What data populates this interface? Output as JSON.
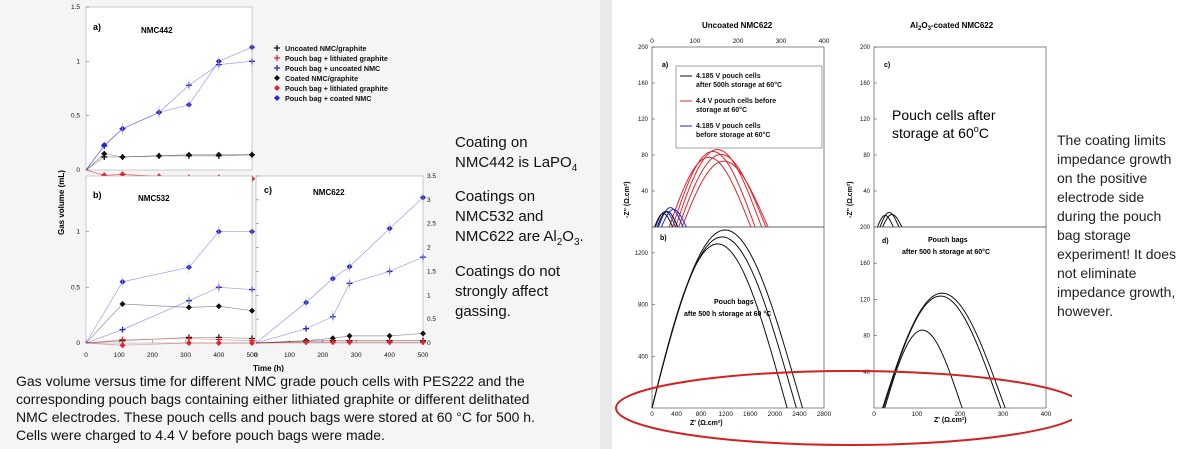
{
  "left": {
    "panel_a_letter": "a)",
    "panel_a_title": "NMC442",
    "panel_b_letter": "b)",
    "panel_b_title": "NMC532",
    "panel_c_letter": "c)",
    "panel_c_title": "NMC622",
    "y_axis_label": "Gas volume (mL)",
    "x_axis_label": "Time (h)",
    "legend": [
      {
        "label": "Uncoated NMC/graphite",
        "color": "#111111",
        "marker": "+"
      },
      {
        "label": "Pouch bag + lithiated graphite",
        "color": "#e0242b",
        "marker": "+"
      },
      {
        "label": "Pouch bag + uncoated NMC",
        "color": "#2323d8",
        "marker": "+"
      },
      {
        "label": "Coated NMC/graphite",
        "color": "#111111",
        "marker": "diamond"
      },
      {
        "label": "Pouch bag + lithiated graphite",
        "color": "#e0242b",
        "marker": "diamond"
      },
      {
        "label": "Pouch bag + coated NMC",
        "color": "#2323d8",
        "marker": "diamond"
      }
    ]
  },
  "notes": {
    "n1_line1": "Coating on",
    "n1_line2": "NMC442 is LaPO",
    "n1_sub": "4",
    "n2_line1": "Coatings on",
    "n2_line2": "NMC532 and",
    "n2_line3a": "NMC622 are Al",
    "n2_sub1": "2",
    "n2_mid": "O",
    "n2_sub2": "3",
    "n2_end": ".",
    "n3_line1": "Coatings do not",
    "n3_line2": "strongly affect",
    "n3_line3": "gassing."
  },
  "caption": {
    "line1": "Gas volume versus time for different NMC grade pouch cells with PES222 and the",
    "line2": "corresponding pouch bags containing either lithiated graphite or different delithated",
    "line3": "NMC electrodes. These pouch cells and pouch bags were stored at 60 °C for 500 h.",
    "line4": "Cells were charged to 4.4 V before pouch bags were made."
  },
  "right": {
    "title_uncoated": "Uncoated NMC622",
    "title_coated_a": "Al",
    "title_coated_sub1": "2",
    "title_coated_b": "O",
    "title_coated_sub2": "3",
    "title_coated_c": "-coated NMC622",
    "panel_a_letter": "a)",
    "panel_b_letter": "b)",
    "panel_c_letter": "c)",
    "panel_d_letter": "d)",
    "legend_a": [
      {
        "l1": "4.185 V pouch cells",
        "l2": "after 500h storage at 60°C",
        "color": "#111111"
      },
      {
        "l1": "4.4  V pouch cells before",
        "l2": "storage at 60°C",
        "color": "#e0242b"
      },
      {
        "l1": "4.185 V pouch cells",
        "l2": "before storage at 60°C",
        "color": "#2323d8"
      }
    ],
    "pouch_cells_after_l1": "Pouch cells after",
    "pouch_cells_after_l2a": "storage at 60",
    "pouch_cells_after_l2sup": "o",
    "pouch_cells_after_l2b": "C",
    "b_label_l1": "Pouch bags",
    "b_label_l2": "afte 500 h storage at 60 °C",
    "d_label_l1": "Pouch bags",
    "d_label_l2": "after 500 h storage at 60°C",
    "yaxis_label": "-Z'' (Ω.cm²)",
    "xaxis_label": "Z' (Ω.cm²)"
  },
  "right_text": {
    "l1": "The coating limits",
    "l2": "impedance growth",
    "l3": "on the positive",
    "l4": "electrode side",
    "l5": "during the pouch",
    "l6": "bag storage",
    "l7": "experiment!  It does",
    "l8": "not eliminate",
    "l9": "impedance growth,",
    "l10": "however."
  },
  "chart_data": [
    {
      "type": "line",
      "panel": "a",
      "title": "NMC442",
      "xlabel": "Time (h)",
      "ylabel": "Gas volume (mL)",
      "xlim": [
        0,
        500
      ],
      "ylim": [
        0,
        1.5
      ],
      "yticks": [
        "0",
        "0.5",
        "1",
        "1.5"
      ],
      "series": [
        {
          "name": "Uncoated NMC/graphite",
          "color": "#111111",
          "x": [
            0,
            55,
            110,
            220,
            310,
            400,
            500
          ],
          "y": [
            0,
            0.12,
            0.12,
            0.13,
            0.13,
            0.13,
            0.14
          ]
        },
        {
          "name": "Pouch bag + lithiated graphite",
          "color": "#e0242b",
          "x": [
            0,
            55,
            110,
            220,
            310,
            400,
            500
          ],
          "y": [
            0,
            -0.05,
            -0.04,
            -0.06,
            -0.07,
            -0.07,
            -0.08
          ]
        },
        {
          "name": "Pouch bag + uncoated NMC",
          "color": "#2323d8",
          "x": [
            0,
            55,
            110,
            220,
            310,
            400,
            500
          ],
          "y": [
            0,
            0.22,
            0.38,
            0.53,
            0.78,
            0.97,
            1.0
          ]
        },
        {
          "name": "Coated NMC/graphite",
          "color": "#111111",
          "x": [
            0,
            55,
            110,
            220,
            310,
            400,
            500
          ],
          "y": [
            0,
            0.15,
            0.12,
            0.13,
            0.14,
            0.14,
            0.14
          ]
        },
        {
          "name": "Pouch bag + lithiated graphite",
          "color": "#e0242b",
          "x": [
            0,
            55,
            110,
            220,
            310,
            400,
            500
          ],
          "y": [
            0,
            -0.05,
            -0.04,
            -0.06,
            -0.07,
            -0.07,
            -0.08
          ]
        },
        {
          "name": "Pouch bag + coated NMC",
          "color": "#2323d8",
          "x": [
            0,
            55,
            110,
            220,
            310,
            400,
            500
          ],
          "y": [
            0,
            0.23,
            0.38,
            0.53,
            0.6,
            1.0,
            1.13
          ]
        }
      ]
    },
    {
      "type": "line",
      "panel": "b",
      "title": "NMC532",
      "xlabel": "Time (h)",
      "xlim": [
        0,
        500
      ],
      "ylim": [
        0,
        1.5
      ],
      "xticks": [
        "0",
        "100",
        "200",
        "300",
        "400",
        "500"
      ],
      "yticks": [
        "0",
        "0.5",
        "1"
      ],
      "series": [
        {
          "name": "Uncoated NMC/graphite",
          "color": "#111111",
          "x": [
            0,
            110,
            310,
            400,
            500
          ],
          "y": [
            0,
            0.02,
            0.05,
            0.05,
            0.04
          ]
        },
        {
          "name": "Pouch bag + lithiated graphite",
          "color": "#e0242b",
          "x": [
            0,
            110,
            310,
            400,
            500
          ],
          "y": [
            0,
            0.03,
            0.04,
            0.03,
            0.02
          ]
        },
        {
          "name": "Pouch bag + uncoated NMC",
          "color": "#2323d8",
          "x": [
            0,
            110,
            310,
            400,
            500
          ],
          "y": [
            0,
            0.12,
            0.38,
            0.5,
            0.48
          ]
        },
        {
          "name": "Coated NMC/graphite",
          "color": "#111111",
          "x": [
            0,
            110,
            310,
            400,
            500
          ],
          "y": [
            0,
            0.35,
            0.32,
            0.33,
            0.29
          ]
        },
        {
          "name": "Pouch bag + lithiated graphite",
          "color": "#e0242b",
          "x": [
            0,
            110,
            310,
            400,
            500
          ],
          "y": [
            0,
            -0.02,
            0.0,
            0.0,
            0.0
          ]
        },
        {
          "name": "Pouch bag + coated NMC",
          "color": "#2323d8",
          "x": [
            0,
            110,
            310,
            400,
            500
          ],
          "y": [
            0,
            0.55,
            0.68,
            1.0,
            1.0
          ]
        }
      ]
    },
    {
      "type": "line",
      "panel": "c",
      "title": "NMC622",
      "xlabel": "Time (h)",
      "xlim": [
        0,
        500
      ],
      "ylim": [
        0,
        3.5
      ],
      "xticks": [
        "0",
        "100",
        "200",
        "300",
        "400",
        "500"
      ],
      "yticks": [
        "0",
        "0.5",
        "1",
        "1.5",
        "2",
        "2.5",
        "3",
        "3.5"
      ],
      "series": [
        {
          "name": "Uncoated NMC/graphite",
          "color": "#111111",
          "x": [
            0,
            150,
            230,
            280,
            400,
            500
          ],
          "y": [
            0,
            0.04,
            0.05,
            0.05,
            0.05,
            0.05
          ]
        },
        {
          "name": "Pouch bag + lithiated graphite",
          "color": "#e0242b",
          "x": [
            0,
            150,
            230,
            280,
            400,
            500
          ],
          "y": [
            0,
            0.02,
            0.02,
            0.02,
            0.02,
            0.02
          ]
        },
        {
          "name": "Pouch bag + uncoated NMC",
          "color": "#2323d8",
          "x": [
            0,
            150,
            230,
            280,
            400,
            500
          ],
          "y": [
            0,
            0.3,
            0.55,
            1.25,
            1.5,
            1.8
          ]
        },
        {
          "name": "Coated NMC/graphite",
          "color": "#111111",
          "x": [
            0,
            150,
            230,
            280,
            400,
            500
          ],
          "y": [
            0,
            0.05,
            0.1,
            0.15,
            0.15,
            0.2
          ]
        },
        {
          "name": "Pouch bag + lithiated graphite",
          "color": "#e0242b",
          "x": [
            0,
            150,
            230,
            280,
            400,
            500
          ],
          "y": [
            0,
            0.02,
            0.02,
            0.02,
            0.02,
            0.02
          ]
        },
        {
          "name": "Pouch bag + coated NMC",
          "color": "#2323d8",
          "x": [
            0,
            150,
            230,
            280,
            400,
            500
          ],
          "y": [
            0,
            0.85,
            1.35,
            1.6,
            2.4,
            3.05
          ]
        }
      ]
    },
    {
      "type": "scatter",
      "panel": "Uncoated NMC622 a)",
      "xlabel": "Z' (Ω.cm²)",
      "ylabel": "-Z'' (Ω.cm²)",
      "xlim": [
        0,
        400
      ],
      "ylim": [
        0,
        200
      ],
      "xticks": [
        "0",
        "100",
        "200",
        "300",
        "400"
      ],
      "yticks": [
        "40",
        "80",
        "120",
        "160",
        "200"
      ],
      "series": [
        {
          "name": "4.185 V pouch cells after 500h storage at 60°C",
          "color": "#111111",
          "shape": "small arcs",
          "x": [
            10,
            25,
            40,
            55
          ],
          "y": [
            5,
            18,
            20,
            5
          ]
        },
        {
          "name": "4.4  V pouch cells before storage at 60°C",
          "color": "#e0242b",
          "shape": "arcs",
          "x": [
            40,
            100,
            160,
            230
          ],
          "y": [
            5,
            75,
            80,
            10
          ]
        },
        {
          "name": "4.185 V pouch cells before storage at 60°C",
          "color": "#2323d8",
          "shape": "small arcs",
          "x": [
            10,
            30,
            55,
            75
          ],
          "y": [
            5,
            18,
            22,
            5
          ]
        }
      ]
    },
    {
      "type": "scatter",
      "panel": "Uncoated NMC622 b)",
      "xlabel": "Z' (Ω.cm²)",
      "ylabel": "-Z'' (Ω.cm²)",
      "xlim": [
        0,
        2800
      ],
      "ylim": [
        0,
        1400
      ],
      "xticks": [
        "0",
        "400",
        "800",
        "1200",
        "1600",
        "2000",
        "2400",
        "2800"
      ],
      "yticks": [
        "400",
        "800",
        "1200"
      ],
      "series": [
        {
          "name": "Pouch bags afte 500 h storage at 60 °C",
          "color": "#111111",
          "shape": "arcs",
          "x": [
            0,
            400,
            1400,
            2200,
            2450
          ],
          "y": [
            0,
            900,
            1300,
            1000,
            300
          ]
        }
      ]
    },
    {
      "type": "scatter",
      "panel": "Al2O3-coated NMC622 c)",
      "xlim": [
        0,
        400
      ],
      "ylim": [
        0,
        200
      ],
      "yticks": [
        "40",
        "80",
        "120",
        "160",
        "200"
      ],
      "series": [
        {
          "name": "Pouch cells after storage at 60°C",
          "color": "#111111",
          "shape": "small arcs",
          "x": [
            10,
            30,
            60
          ],
          "y": [
            5,
            18,
            5
          ]
        }
      ]
    },
    {
      "type": "scatter",
      "panel": "Al2O3-coated NMC622 d)",
      "xlabel": "Z' (Ω.cm²)",
      "xlim": [
        0,
        400
      ],
      "ylim": [
        0,
        200
      ],
      "xticks": [
        "0",
        "100",
        "200",
        "300",
        "400"
      ],
      "yticks": [
        "40",
        "80",
        "120",
        "160",
        "200"
      ],
      "series": [
        {
          "name": "Pouch bags after 500 h storage at 60°C",
          "color": "#111111",
          "shape": "arcs",
          "x": [
            20,
            150,
            300
          ],
          "y": [
            0,
            125,
            40
          ]
        }
      ]
    }
  ]
}
